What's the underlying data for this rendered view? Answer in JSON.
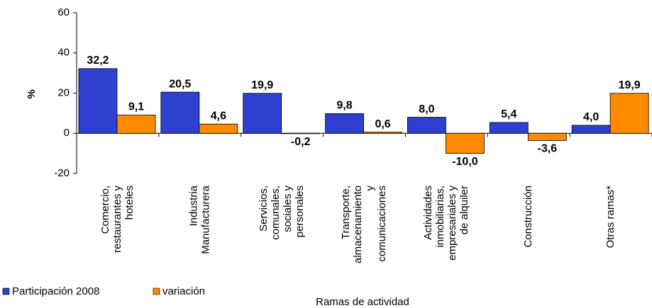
{
  "chart_data": {
    "type": "bar",
    "y_label": "%",
    "x_label": "Ramas de actividad",
    "categories": [
      "Comercio, restaurantes y hoteles",
      "Industria Manufacturera",
      "Servicios, comunales, sociales y personales",
      "Transporte, almacenamiento y comunicaciones",
      "Actividades inmobiliarias, empresariales y de alquiler",
      "Construcción",
      "Otras ramas*"
    ],
    "series": [
      {
        "name": "Participación 2008",
        "color": "#2f3fd0",
        "label_color": "#1a1a80",
        "values": [
          32.2,
          20.5,
          19.9,
          9.8,
          8.0,
          5.4,
          4.0
        ],
        "value_labels": [
          "32,2",
          "20,5",
          "19,9",
          "9,8",
          "8,0",
          "5,4",
          "4,0"
        ]
      },
      {
        "name": "variación",
        "color": "#ff8a00",
        "label_color": "#f07a10",
        "values": [
          9.1,
          4.6,
          -0.2,
          0.6,
          -10.0,
          -3.6,
          19.9
        ],
        "value_labels": [
          "9,1",
          "4,6",
          "-0,2",
          "0,6",
          "-10,0",
          "-3,6",
          "19,9"
        ]
      }
    ],
    "ylim": [
      -20,
      60
    ],
    "yticks": [
      -20,
      0,
      20,
      40,
      60
    ]
  }
}
